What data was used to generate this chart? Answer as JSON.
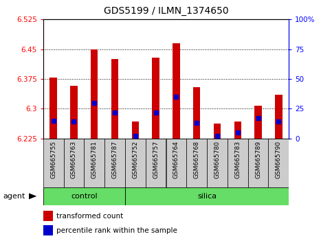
{
  "title": "GDS5199 / ILMN_1374650",
  "samples": [
    "GSM665755",
    "GSM665763",
    "GSM665781",
    "GSM665787",
    "GSM665752",
    "GSM665757",
    "GSM665764",
    "GSM665768",
    "GSM665780",
    "GSM665783",
    "GSM665789",
    "GSM665790"
  ],
  "groups": [
    "control",
    "control",
    "control",
    "control",
    "silica",
    "silica",
    "silica",
    "silica",
    "silica",
    "silica",
    "silica",
    "silica"
  ],
  "transformed_count": [
    6.378,
    6.358,
    6.45,
    6.425,
    6.268,
    6.428,
    6.465,
    6.355,
    6.262,
    6.268,
    6.308,
    6.335
  ],
  "percentile_rank": [
    15,
    14,
    30,
    22,
    2,
    22,
    35,
    13,
    2,
    5,
    17,
    14
  ],
  "ylim_left": [
    6.225,
    6.525
  ],
  "ylim_right": [
    0,
    100
  ],
  "yticks_left": [
    6.225,
    6.3,
    6.375,
    6.45,
    6.525
  ],
  "yticks_right": [
    0,
    25,
    50,
    75,
    100
  ],
  "bar_color": "#cc0000",
  "dot_color": "#0000cc",
  "bar_width": 0.35,
  "control_color": "#66dd66",
  "silica_color": "#66dd66",
  "tick_bg": "#cccccc",
  "base_value": 6.225,
  "legend_items": [
    "transformed count",
    "percentile rank within the sample"
  ],
  "grid_lines": [
    6.3,
    6.375,
    6.45
  ],
  "title_fontsize": 10,
  "axis_fontsize": 7.5,
  "label_fontsize": 6.5,
  "group_fontsize": 8
}
